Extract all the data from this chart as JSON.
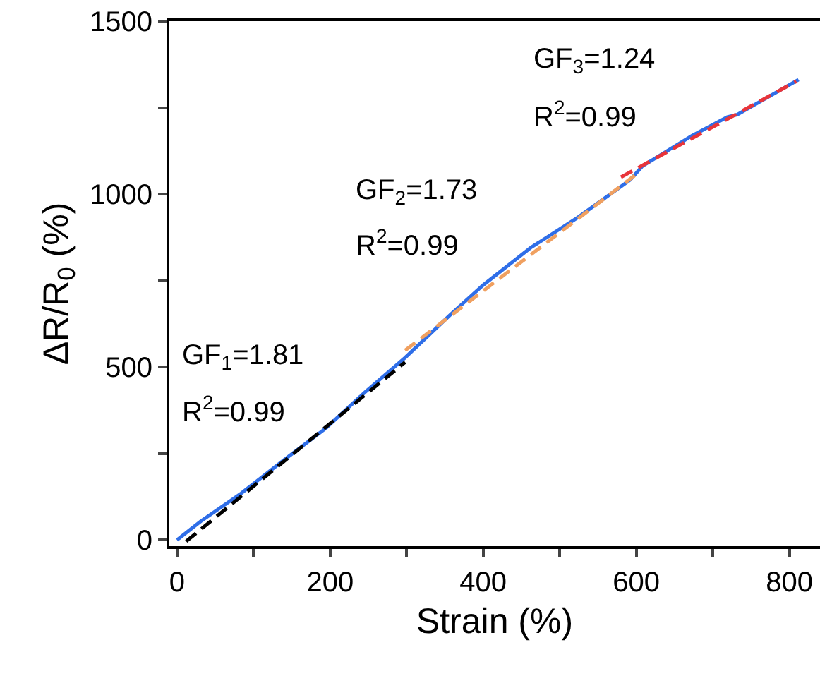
{
  "chart_data": {
    "type": "line",
    "xlabel": "Strain (%)",
    "ylabel": "ΔR/R$_{0}$ (%)",
    "xlim": [
      -10,
      840
    ],
    "ylim": [
      -18,
      1500
    ],
    "xticks": [
      0,
      {
        "value": 100,
        "label": null
      },
      200,
      {
        "value": 300,
        "label": null
      },
      400,
      {
        "value": 500,
        "label": null
      },
      600,
      {
        "value": 700,
        "label": null
      },
      800
    ],
    "yticks": [
      0,
      {
        "value": 250,
        "label": null
      },
      500,
      {
        "value": 750,
        "label": null
      },
      1000,
      {
        "value": 1250,
        "label": null
      },
      1500
    ],
    "grid": false,
    "marker": "none",
    "series": [
      {
        "color": "#2f6ee8",
        "line_style": "solid",
        "x": [
          0,
          31,
          84,
          139,
          195,
          245,
          298,
          356,
          400,
          462,
          524,
          592,
          608,
          673,
          719,
          732,
          812
        ],
        "values": [
          0,
          54,
          135,
          230,
          324,
          426,
          527,
          649,
          737,
          845,
          933,
          1041,
          1081,
          1169,
          1223,
          1230,
          1331
        ]
      },
      {
        "color": "#000000",
        "line_style": "dashed",
        "x": [
          12,
          298
        ],
        "values": [
          -4,
          514
        ]
      },
      {
        "color": "#f0a060",
        "line_style": "dashed",
        "x": [
          298,
          598
        ],
        "values": [
          548,
          1054
        ]
      },
      {
        "color": "#e8343a",
        "line_style": "dashed",
        "x": [
          580,
          809
        ],
        "values": [
          1049,
          1326
        ]
      }
    ],
    "annotations": [
      "GF$_{1}$=1.81",
      "R$^{2}$=0.99",
      "GF$_{2}$=1.73",
      "R$^{2}$=0.99",
      "GF$_{3}$=1.24",
      "R$^{2}$=0.99"
    ]
  }
}
